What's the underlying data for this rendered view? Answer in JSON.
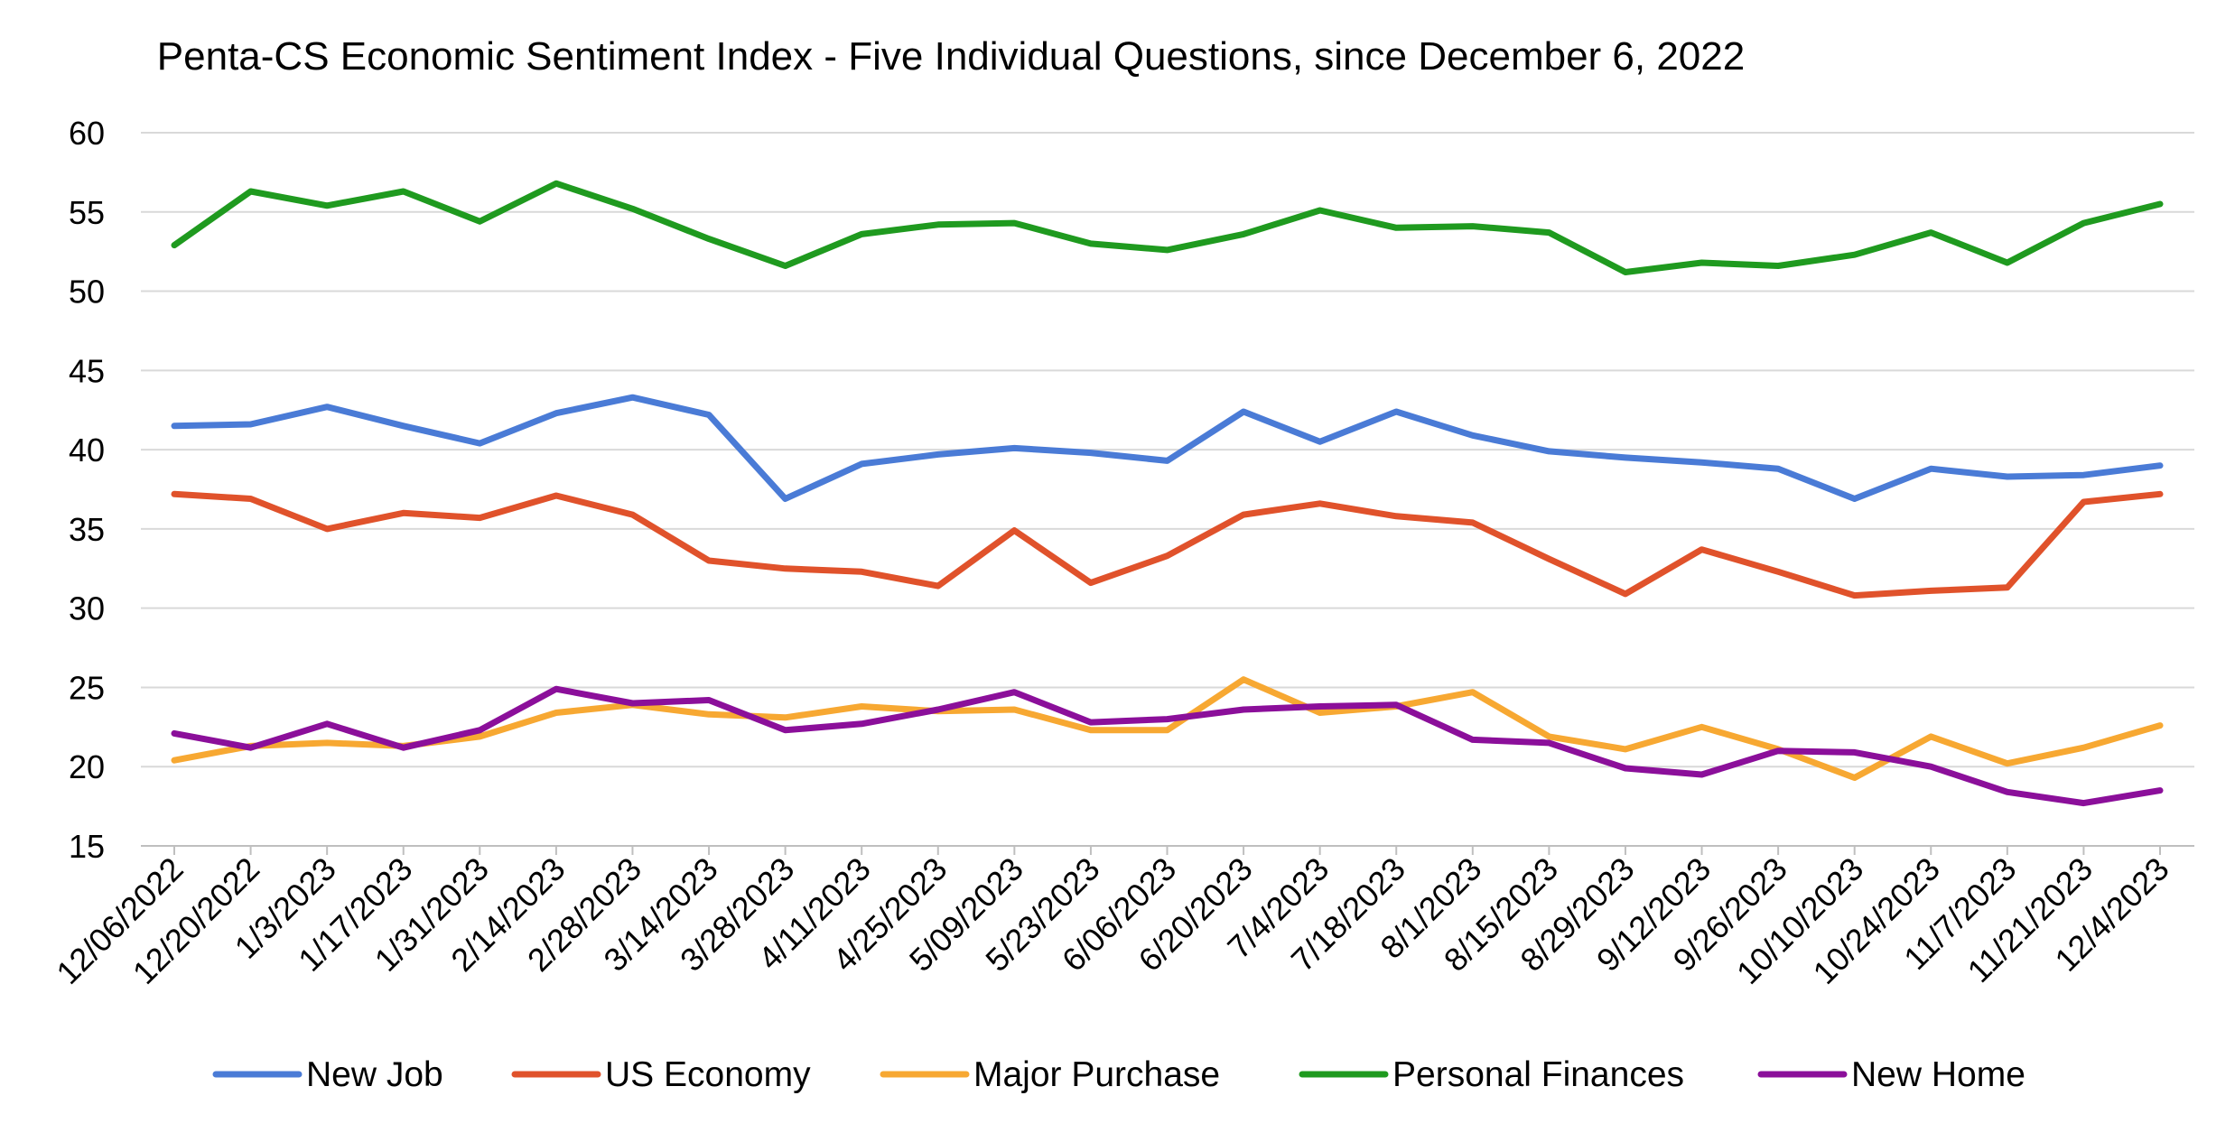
{
  "chart_data": {
    "type": "line",
    "title": "Penta-CS Economic Sentiment Index - Five Individual Questions, since December 6, 2022",
    "xlabel": "",
    "ylabel": "",
    "ylim": [
      15,
      60
    ],
    "yticks": [
      15,
      20,
      25,
      30,
      35,
      40,
      45,
      50,
      55,
      60
    ],
    "grid": true,
    "legend_position": "bottom",
    "categories": [
      "12/06/2022",
      "12/20/2022",
      "1/3/2023",
      "1/17/2023",
      "1/31/2023",
      "2/14/2023",
      "2/28/2023",
      "3/14/2023",
      "3/28/2023",
      "4/11/2023",
      "4/25/2023",
      "5/09/2023",
      "5/23/2023",
      "6/06/2023",
      "6/20/2023",
      "7/4/2023",
      "7/18/2023",
      "8/1/2023",
      "8/15/2023",
      "8/29/2023",
      "9/12/2023",
      "9/26/2023",
      "10/10/2023",
      "10/24/2023",
      "11/7/2023",
      "11/21/2023",
      "12/4/2023"
    ],
    "series": [
      {
        "name": "New Job",
        "color": "#4a7bd6",
        "values": [
          41.5,
          41.6,
          42.7,
          41.5,
          40.4,
          42.3,
          43.3,
          42.2,
          36.9,
          39.1,
          39.7,
          40.1,
          39.8,
          39.3,
          42.4,
          40.5,
          42.4,
          40.9,
          39.9,
          39.5,
          39.2,
          38.8,
          36.9,
          38.8,
          38.3,
          38.4,
          39.0
        ]
      },
      {
        "name": "US Economy",
        "color": "#e0522b",
        "values": [
          37.2,
          36.9,
          35.0,
          36.0,
          35.7,
          37.1,
          35.9,
          33.0,
          32.5,
          32.3,
          31.4,
          34.9,
          31.6,
          33.3,
          35.9,
          36.6,
          35.8,
          35.4,
          33.1,
          30.9,
          33.7,
          32.3,
          30.8,
          31.1,
          31.3,
          36.7,
          37.2
        ]
      },
      {
        "name": "Major Purchase",
        "color": "#f7a832",
        "values": [
          20.4,
          21.3,
          21.5,
          21.3,
          21.9,
          23.4,
          23.9,
          23.3,
          23.1,
          23.8,
          23.5,
          23.6,
          22.3,
          22.3,
          25.5,
          23.4,
          23.8,
          24.7,
          21.9,
          21.1,
          22.5,
          21.1,
          19.3,
          21.9,
          20.2,
          21.2,
          22.6
        ]
      },
      {
        "name": "Personal Finances",
        "color": "#1f9a1f",
        "values": [
          52.9,
          56.3,
          55.4,
          56.3,
          54.4,
          56.8,
          55.2,
          53.3,
          51.6,
          53.6,
          54.2,
          54.3,
          53.0,
          52.6,
          53.6,
          55.1,
          54.0,
          54.1,
          53.7,
          51.2,
          51.8,
          51.6,
          52.3,
          53.7,
          51.8,
          54.3,
          55.5
        ]
      },
      {
        "name": "New Home",
        "color": "#8b0f9a",
        "values": [
          22.1,
          21.2,
          22.7,
          21.2,
          22.3,
          24.9,
          24.0,
          24.2,
          22.3,
          22.7,
          23.6,
          24.7,
          22.8,
          23.0,
          23.6,
          23.8,
          23.9,
          21.7,
          21.5,
          19.9,
          19.5,
          21.0,
          20.9,
          20.0,
          18.4,
          17.7,
          18.5
        ]
      }
    ]
  }
}
